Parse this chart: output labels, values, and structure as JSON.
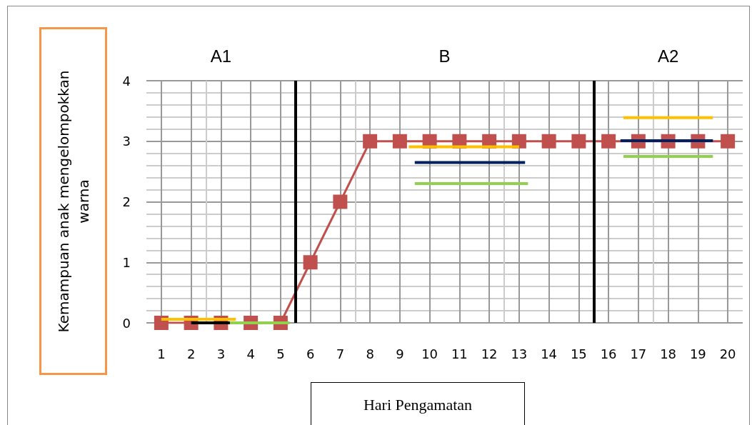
{
  "chart_data": {
    "type": "line",
    "xlabel": "Hari Pengamatan",
    "ylabel": "Kemampuan anak mengelompokkan warna",
    "x": [
      1,
      2,
      3,
      4,
      5,
      6,
      7,
      8,
      9,
      10,
      11,
      12,
      13,
      14,
      15,
      16,
      17,
      18,
      19,
      20
    ],
    "series": [
      {
        "color": "#c0504d",
        "values": [
          0,
          0,
          0,
          0,
          0,
          1,
          2,
          3,
          3,
          3,
          3,
          3,
          3,
          3,
          3,
          3,
          3,
          3,
          3,
          3
        ]
      },
      {
        "color": "#ffc000",
        "marker": "none",
        "x": [
          1,
          3.5
        ],
        "values": [
          0.06,
          0.06
        ]
      },
      {
        "color": "#000000",
        "marker": "none",
        "x": [
          2,
          3.3
        ],
        "values": [
          0,
          0
        ]
      },
      {
        "color": "#92d050",
        "marker": "none",
        "x": [
          3.3,
          5.3
        ],
        "values": [
          0,
          0
        ]
      },
      {
        "color": "#ffc000",
        "marker": "none",
        "x": [
          9.3,
          13
        ],
        "values": [
          2.91,
          2.91
        ]
      },
      {
        "color": "#002060",
        "marker": "none",
        "x": [
          9.5,
          13.2
        ],
        "values": [
          2.65,
          2.65
        ]
      },
      {
        "color": "#92d050",
        "marker": "none",
        "x": [
          9.5,
          13.3
        ],
        "values": [
          2.3,
          2.3
        ]
      },
      {
        "color": "#ffc000",
        "marker": "none",
        "x": [
          16.5,
          19.5
        ],
        "values": [
          3.39,
          3.39
        ]
      },
      {
        "color": "#002060",
        "marker": "none",
        "x": [
          16.4,
          19.5
        ],
        "values": [
          3.01,
          3.01
        ]
      },
      {
        "color": "#92d050",
        "marker": "none",
        "x": [
          16.5,
          19.5
        ],
        "values": [
          2.75,
          2.75
        ]
      }
    ],
    "xlim": [
      0.5,
      20.5
    ],
    "xticks": [
      1,
      2,
      3,
      4,
      5,
      6,
      7,
      8,
      9,
      10,
      11,
      12,
      13,
      14,
      15,
      16,
      17,
      18,
      19,
      20
    ],
    "ylim": [
      0,
      4
    ],
    "yticks": [
      0,
      1,
      2,
      3,
      4
    ],
    "ref_lines": [
      {
        "axis": "x",
        "value": 5.5,
        "color": "#000000"
      },
      {
        "axis": "x",
        "value": 15.5,
        "color": "#000000"
      }
    ],
    "annotations": [
      "A1",
      "B",
      "A2"
    ],
    "grid": true,
    "marker": "square",
    "line_style": "solid"
  }
}
